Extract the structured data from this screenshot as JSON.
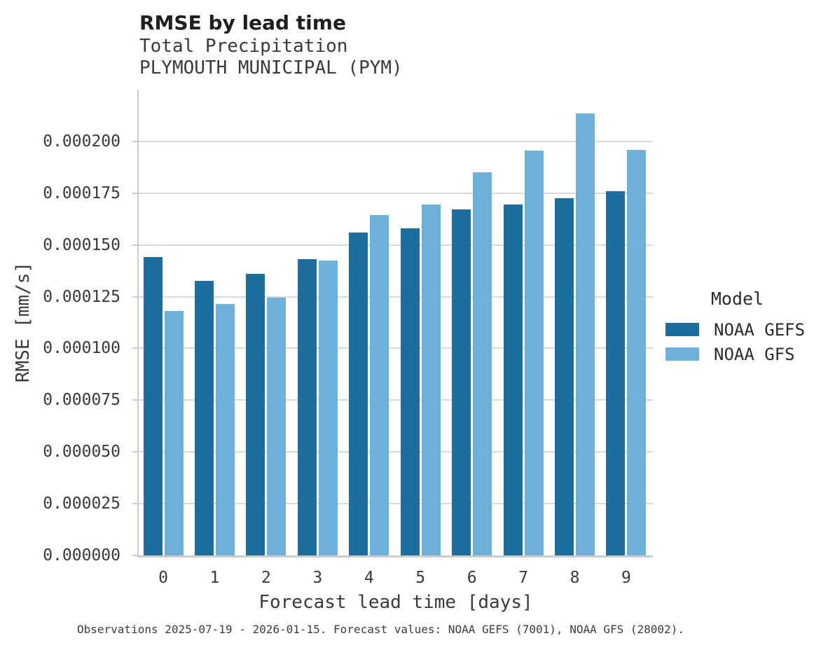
{
  "header": {
    "title": "RMSE by lead time",
    "subtitle_line1": "Total Precipitation",
    "subtitle_line2": "PLYMOUTH MUNICIPAL (PYM)"
  },
  "chart_data": {
    "type": "bar",
    "title": "RMSE by lead time",
    "subtitle": [
      "Total Precipitation",
      "PLYMOUTH MUNICIPAL (PYM)"
    ],
    "categories": [
      "0",
      "1",
      "2",
      "3",
      "4",
      "5",
      "6",
      "7",
      "8",
      "9"
    ],
    "series": [
      {
        "name": "NOAA GEFS",
        "color": "#1d6e9e",
        "values": [
          0.000144,
          0.0001325,
          0.000136,
          0.000143,
          0.000156,
          0.000158,
          0.000167,
          0.0001695,
          0.0001725,
          0.000176
        ]
      },
      {
        "name": "NOAA GFS",
        "color": "#6db1d8",
        "values": [
          0.000118,
          0.0001215,
          0.0001245,
          0.0001425,
          0.0001645,
          0.0001695,
          0.000185,
          0.0001955,
          0.0002135,
          0.000196
        ]
      }
    ],
    "xlabel": "Forecast lead time [days]",
    "ylabel": "RMSE [mm/s]",
    "ylim": [
      0,
      0.000225
    ],
    "yticks": [
      0,
      2.5e-05,
      5e-05,
      7.5e-05,
      0.0001,
      0.000125,
      0.00015,
      0.000175,
      0.0002
    ],
    "ytick_labels": [
      "0.000000",
      "0.000025",
      "0.000050",
      "0.000075",
      "0.000100",
      "0.000125",
      "0.000150",
      "0.000175",
      "0.000200"
    ],
    "grid": "horizontal",
    "legend_position": "right of plot",
    "legend_title": "Model"
  },
  "legend": {
    "title": "Model",
    "items": [
      {
        "label": "NOAA GEFS",
        "color": "#1d6e9e"
      },
      {
        "label": "NOAA GFS",
        "color": "#6db1d8"
      }
    ]
  },
  "axes": {
    "xlabel": "Forecast lead time [days]",
    "ylabel": "RMSE [mm/s]"
  },
  "caption": "Observations 2025-07-19 - 2026-01-15. Forecast values: NOAA GEFS (7001), NOAA GFS (28002)."
}
